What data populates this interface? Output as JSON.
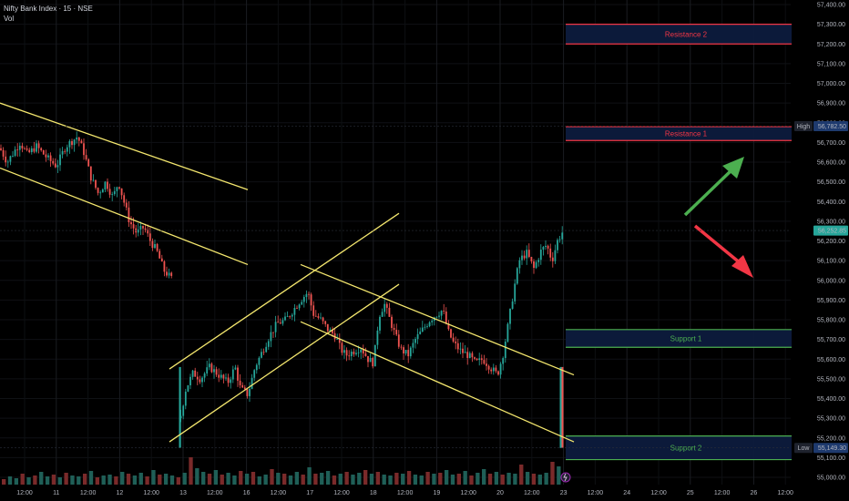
{
  "chart_data": {
    "type": "candlestick",
    "symbol_line": "Nifty Bank Index · 15 · NSE",
    "volume_label": "Vol",
    "colors": {
      "up": "#26a69a",
      "down": "#ef5350",
      "trendline": "#f4e76e",
      "background": "#000000"
    },
    "y_axis": {
      "range": [
        55000,
        57400
      ],
      "ticks": [
        "57,400.00",
        "57,300.00",
        "57,200.00",
        "57,100.00",
        "57,000.00",
        "56,900.00",
        "56,800.00",
        "56,700.00",
        "56,600.00",
        "56,500.00",
        "56,400.00",
        "56,300.00",
        "56,200.00",
        "56,100.00",
        "56,000.00",
        "55,900.00",
        "55,800.00",
        "55,700.00",
        "55,600.00",
        "55,500.00",
        "55,400.00",
        "55,300.00",
        "55,200.00",
        "55,100.00",
        "55,000.00"
      ]
    },
    "x_axis": {
      "ticks": [
        "12:00",
        "11",
        "12:00",
        "12",
        "12:00",
        "13",
        "12:00",
        "16",
        "12:00",
        "17",
        "12:00",
        "18",
        "12:00",
        "19",
        "12:00",
        "20",
        "12:00",
        "23",
        "12:00",
        "24",
        "12:00",
        "25",
        "12:00",
        "26",
        "12:00"
      ]
    },
    "price_markers": [
      {
        "label": "High",
        "value": "56,782.50",
        "price": 56782.5,
        "color": "#1e3a6e"
      },
      {
        "label": "",
        "value": "56,252.85",
        "price": 56252.85,
        "color": "#26a69a"
      },
      {
        "label": "Low",
        "value": "55,149.30",
        "price": 55149.3,
        "color": "#1e3a6e"
      }
    ],
    "zones": [
      {
        "label": "Resistance 2",
        "top": 57300,
        "bottom": 57200,
        "color": "#f23645"
      },
      {
        "label": "Resistance 1",
        "top": 56780,
        "bottom": 56710,
        "color": "#f23645"
      },
      {
        "label": "Support 1",
        "top": 55750,
        "bottom": 55660,
        "color": "#4caf50"
      },
      {
        "label": "Support 2",
        "top": 55210,
        "bottom": 55090,
        "color": "#4caf50"
      }
    ],
    "arrows": [
      {
        "direction": "up",
        "color": "#4caf50"
      },
      {
        "direction": "down",
        "color": "#f23645"
      }
    ],
    "trendlines": [
      {
        "from": [
          0,
          56900
        ],
        "to": [
          272,
          56460
        ]
      },
      {
        "from": [
          0,
          56570
        ],
        "to": [
          272,
          56080
        ]
      },
      {
        "from": [
          186,
          55550
        ],
        "to": [
          438,
          56340
        ]
      },
      {
        "from": [
          186,
          55180
        ],
        "to": [
          438,
          55980
        ]
      },
      {
        "from": [
          330,
          56080
        ],
        "to": [
          630,
          55520
        ]
      },
      {
        "from": [
          330,
          55790
        ],
        "to": [
          630,
          55180
        ]
      }
    ],
    "close_path": [
      [
        0,
        56670
      ],
      [
        8,
        56600
      ],
      [
        15,
        56650
      ],
      [
        22,
        56700
      ],
      [
        30,
        56640
      ],
      [
        40,
        56680
      ],
      [
        52,
        56620
      ],
      [
        62,
        56580
      ],
      [
        72,
        56680
      ],
      [
        85,
        56730
      ],
      [
        92,
        56650
      ],
      [
        100,
        56520
      ],
      [
        108,
        56440
      ],
      [
        116,
        56500
      ],
      [
        124,
        56420
      ],
      [
        130,
        56500
      ],
      [
        136,
        56400
      ],
      [
        142,
        56300
      ],
      [
        150,
        56240
      ],
      [
        158,
        56270
      ],
      [
        165,
        56200
      ],
      [
        172,
        56150
      ],
      [
        180,
        56050
      ],
      [
        190,
        56000
      ],
      [
        198,
        55300
      ],
      [
        204,
        55450
      ],
      [
        212,
        55530
      ],
      [
        220,
        55500
      ],
      [
        230,
        55560
      ],
      [
        240,
        55520
      ],
      [
        250,
        55480
      ],
      [
        258,
        55560
      ],
      [
        264,
        55450
      ],
      [
        272,
        55420
      ],
      [
        280,
        55560
      ],
      [
        288,
        55640
      ],
      [
        296,
        55720
      ],
      [
        304,
        55780
      ],
      [
        314,
        55800
      ],
      [
        322,
        55850
      ],
      [
        330,
        55900
      ],
      [
        338,
        55940
      ],
      [
        344,
        55830
      ],
      [
        352,
        55800
      ],
      [
        360,
        55750
      ],
      [
        368,
        55720
      ],
      [
        374,
        55650
      ],
      [
        380,
        55620
      ],
      [
        388,
        55640
      ],
      [
        396,
        55660
      ],
      [
        404,
        55600
      ],
      [
        410,
        55580
      ],
      [
        416,
        55820
      ],
      [
        422,
        55880
      ],
      [
        428,
        55800
      ],
      [
        434,
        55720
      ],
      [
        440,
        55650
      ],
      [
        448,
        55620
      ],
      [
        456,
        55700
      ],
      [
        464,
        55750
      ],
      [
        472,
        55800
      ],
      [
        480,
        55830
      ],
      [
        486,
        55850
      ],
      [
        492,
        55740
      ],
      [
        498,
        55680
      ],
      [
        506,
        55640
      ],
      [
        514,
        55620
      ],
      [
        522,
        55580
      ],
      [
        530,
        55600
      ],
      [
        538,
        55560
      ],
      [
        546,
        55520
      ],
      [
        552,
        55620
      ],
      [
        558,
        55780
      ],
      [
        564,
        55950
      ],
      [
        570,
        56100
      ],
      [
        578,
        56140
      ],
      [
        586,
        56060
      ],
      [
        594,
        56150
      ],
      [
        600,
        56180
      ],
      [
        606,
        56100
      ],
      [
        612,
        56200
      ],
      [
        618,
        56250
      ]
    ],
    "volume_heights": [
      6,
      9,
      7,
      12,
      8,
      10,
      14,
      9,
      11,
      8,
      13,
      10,
      9,
      12,
      15,
      8,
      10,
      11,
      9,
      14,
      12,
      10,
      13,
      9,
      16,
      11,
      12,
      10,
      8,
      13,
      30,
      18,
      14,
      12,
      16,
      11,
      13,
      10,
      15,
      12,
      14,
      9,
      11,
      17,
      13,
      12,
      10,
      14,
      11,
      19,
      12,
      13,
      15,
      10,
      12,
      14,
      11,
      13,
      16,
      12,
      14,
      11,
      10,
      13,
      12,
      15,
      11,
      10,
      14,
      12,
      13,
      16,
      11,
      12,
      15,
      10,
      13,
      17,
      12,
      14,
      11,
      13,
      12,
      22,
      14,
      12,
      11,
      13,
      25,
      20
    ]
  }
}
